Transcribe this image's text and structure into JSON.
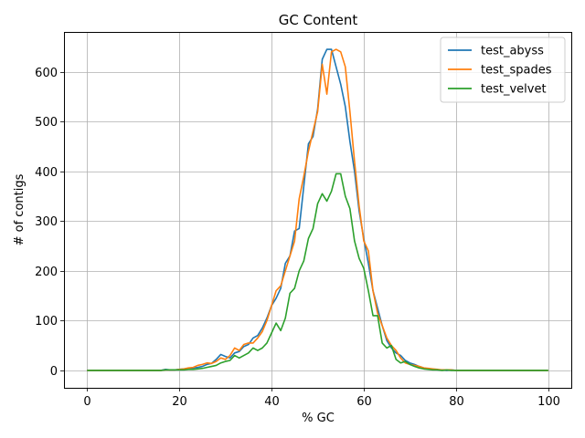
{
  "chart_data": {
    "type": "line",
    "title": "GC Content",
    "xlabel": "% GC",
    "ylabel": "# of contigs",
    "xlim": [
      -5,
      105
    ],
    "ylim": [
      -35,
      680
    ],
    "xticks": [
      0,
      20,
      40,
      60,
      80,
      100
    ],
    "yticks": [
      0,
      100,
      200,
      300,
      400,
      500,
      600
    ],
    "grid": true,
    "legend_position": "top-right",
    "x": [
      0,
      1,
      2,
      3,
      4,
      5,
      6,
      7,
      8,
      9,
      10,
      11,
      12,
      13,
      14,
      15,
      16,
      17,
      18,
      19,
      20,
      21,
      22,
      23,
      24,
      25,
      26,
      27,
      28,
      29,
      30,
      31,
      32,
      33,
      34,
      35,
      36,
      37,
      38,
      39,
      40,
      41,
      42,
      43,
      44,
      45,
      46,
      47,
      48,
      49,
      50,
      51,
      52,
      53,
      54,
      55,
      56,
      57,
      58,
      59,
      60,
      61,
      62,
      63,
      64,
      65,
      66,
      67,
      68,
      69,
      70,
      71,
      72,
      73,
      74,
      75,
      76,
      77,
      78,
      79,
      80,
      81,
      82,
      83,
      84,
      85,
      86,
      87,
      88,
      89,
      90,
      91,
      92,
      93,
      94,
      95,
      96,
      97,
      98,
      99,
      100
    ],
    "series": [
      {
        "name": "test_abyss",
        "color": "#1f77b4",
        "values": [
          0,
          0,
          0,
          0,
          0,
          0,
          0,
          0,
          0,
          0,
          0,
          0,
          0,
          0,
          0,
          0,
          0,
          2,
          1,
          1,
          2,
          3,
          4,
          5,
          6,
          8,
          12,
          14,
          22,
          32,
          28,
          25,
          35,
          38,
          48,
          52,
          65,
          70,
          85,
          105,
          130,
          145,
          165,
          215,
          230,
          280,
          285,
          370,
          455,
          470,
          525,
          625,
          645,
          645,
          610,
          575,
          530,
          460,
          400,
          320,
          265,
          215,
          160,
          125,
          90,
          60,
          45,
          35,
          30,
          20,
          15,
          12,
          8,
          5,
          3,
          2,
          1,
          1,
          0,
          1,
          0,
          0,
          0,
          0,
          0,
          0,
          0,
          0,
          0,
          0,
          0,
          0,
          0,
          0,
          0,
          0,
          0,
          0,
          0,
          0,
          0
        ]
      },
      {
        "name": "test_spades",
        "color": "#ff7f0e",
        "values": [
          0,
          0,
          0,
          0,
          0,
          0,
          0,
          0,
          0,
          0,
          0,
          0,
          0,
          0,
          0,
          0,
          0,
          1,
          1,
          1,
          2,
          3,
          5,
          6,
          10,
          12,
          15,
          14,
          18,
          25,
          22,
          30,
          45,
          40,
          52,
          55,
          55,
          65,
          78,
          100,
          130,
          160,
          170,
          200,
          230,
          260,
          345,
          390,
          440,
          480,
          520,
          615,
          555,
          640,
          645,
          640,
          610,
          520,
          420,
          330,
          260,
          240,
          160,
          115,
          90,
          65,
          50,
          40,
          25,
          15,
          12,
          10,
          8,
          5,
          4,
          3,
          2,
          1,
          1,
          1,
          0,
          0,
          0,
          0,
          0,
          0,
          0,
          0,
          0,
          0,
          0,
          0,
          0,
          0,
          0,
          0,
          0,
          0,
          0,
          0,
          0
        ]
      },
      {
        "name": "test_velvet",
        "color": "#2ca02c",
        "values": [
          0,
          0,
          0,
          0,
          0,
          0,
          0,
          0,
          0,
          0,
          0,
          0,
          0,
          0,
          0,
          0,
          0,
          1,
          1,
          1,
          1,
          1,
          2,
          2,
          3,
          4,
          6,
          8,
          10,
          15,
          18,
          20,
          30,
          25,
          30,
          35,
          45,
          40,
          45,
          55,
          75,
          95,
          80,
          105,
          155,
          165,
          200,
          220,
          265,
          285,
          335,
          355,
          340,
          360,
          395,
          395,
          350,
          325,
          260,
          225,
          205,
          160,
          110,
          110,
          55,
          45,
          50,
          22,
          15,
          18,
          12,
          8,
          5,
          3,
          2,
          1,
          1,
          0,
          1,
          0,
          0,
          0,
          0,
          0,
          0,
          0,
          0,
          0,
          0,
          0,
          0,
          0,
          0,
          0,
          0,
          0,
          0,
          0,
          0,
          0,
          0
        ]
      }
    ]
  }
}
